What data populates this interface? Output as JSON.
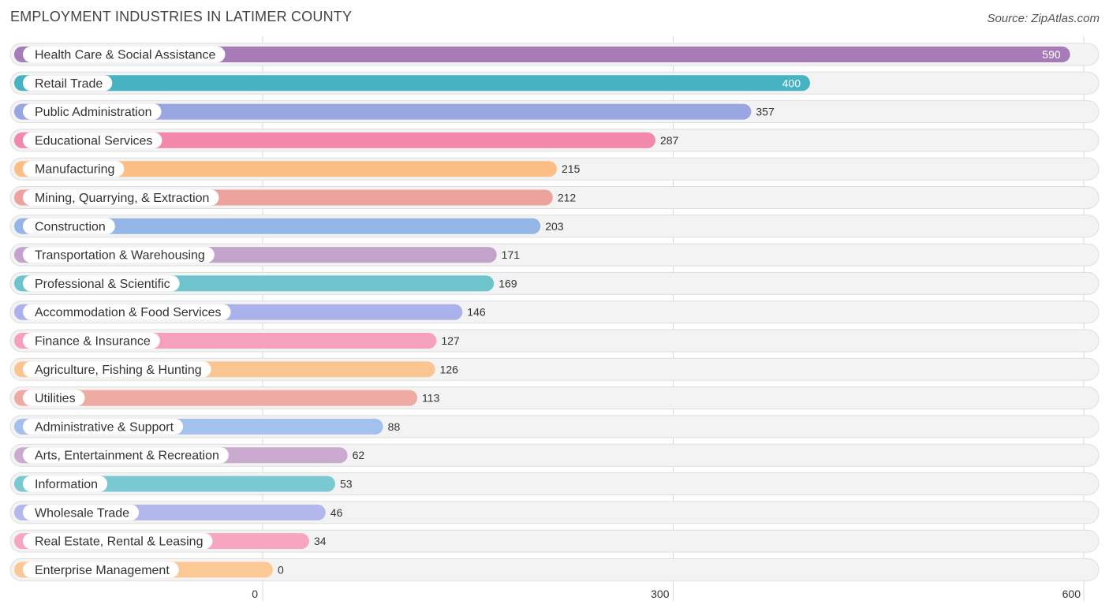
{
  "header": {
    "title": "EMPLOYMENT INDUSTRIES IN LATIMER COUNTY",
    "source": "Source: ZipAtlas.com"
  },
  "chart_data": {
    "type": "bar",
    "orientation": "horizontal",
    "title": "EMPLOYMENT INDUSTRIES IN LATIMER COUNTY",
    "xlabel": "",
    "ylabel": "",
    "xlim": [
      0,
      600
    ],
    "ticks": [
      0,
      300,
      600
    ],
    "grid": true,
    "categories": [
      "Health Care & Social Assistance",
      "Retail Trade",
      "Public Administration",
      "Educational Services",
      "Manufacturing",
      "Mining, Quarrying, & Extraction",
      "Construction",
      "Transportation & Warehousing",
      "Professional & Scientific",
      "Accommodation & Food Services",
      "Finance & Insurance",
      "Agriculture, Fishing & Hunting",
      "Utilities",
      "Administrative & Support",
      "Arts, Entertainment & Recreation",
      "Information",
      "Wholesale Trade",
      "Real Estate, Rental & Leasing",
      "Enterprise Management"
    ],
    "values": [
      590,
      400,
      357,
      287,
      215,
      212,
      203,
      171,
      169,
      146,
      127,
      126,
      113,
      88,
      62,
      53,
      46,
      34,
      0
    ],
    "colors": [
      "#a77bb8",
      "#45b3c2",
      "#9aa6e2",
      "#f288aa",
      "#fbbf85",
      "#eca39e",
      "#93b6e6",
      "#c3a3cb",
      "#6dc4cc",
      "#abb1ea",
      "#f6a1bb",
      "#fbc591",
      "#eeaaa3",
      "#a3c1ec",
      "#cbaad0",
      "#7ac9d2",
      "#b3b8ec",
      "#f6a7bf",
      "#fcc896"
    ]
  }
}
